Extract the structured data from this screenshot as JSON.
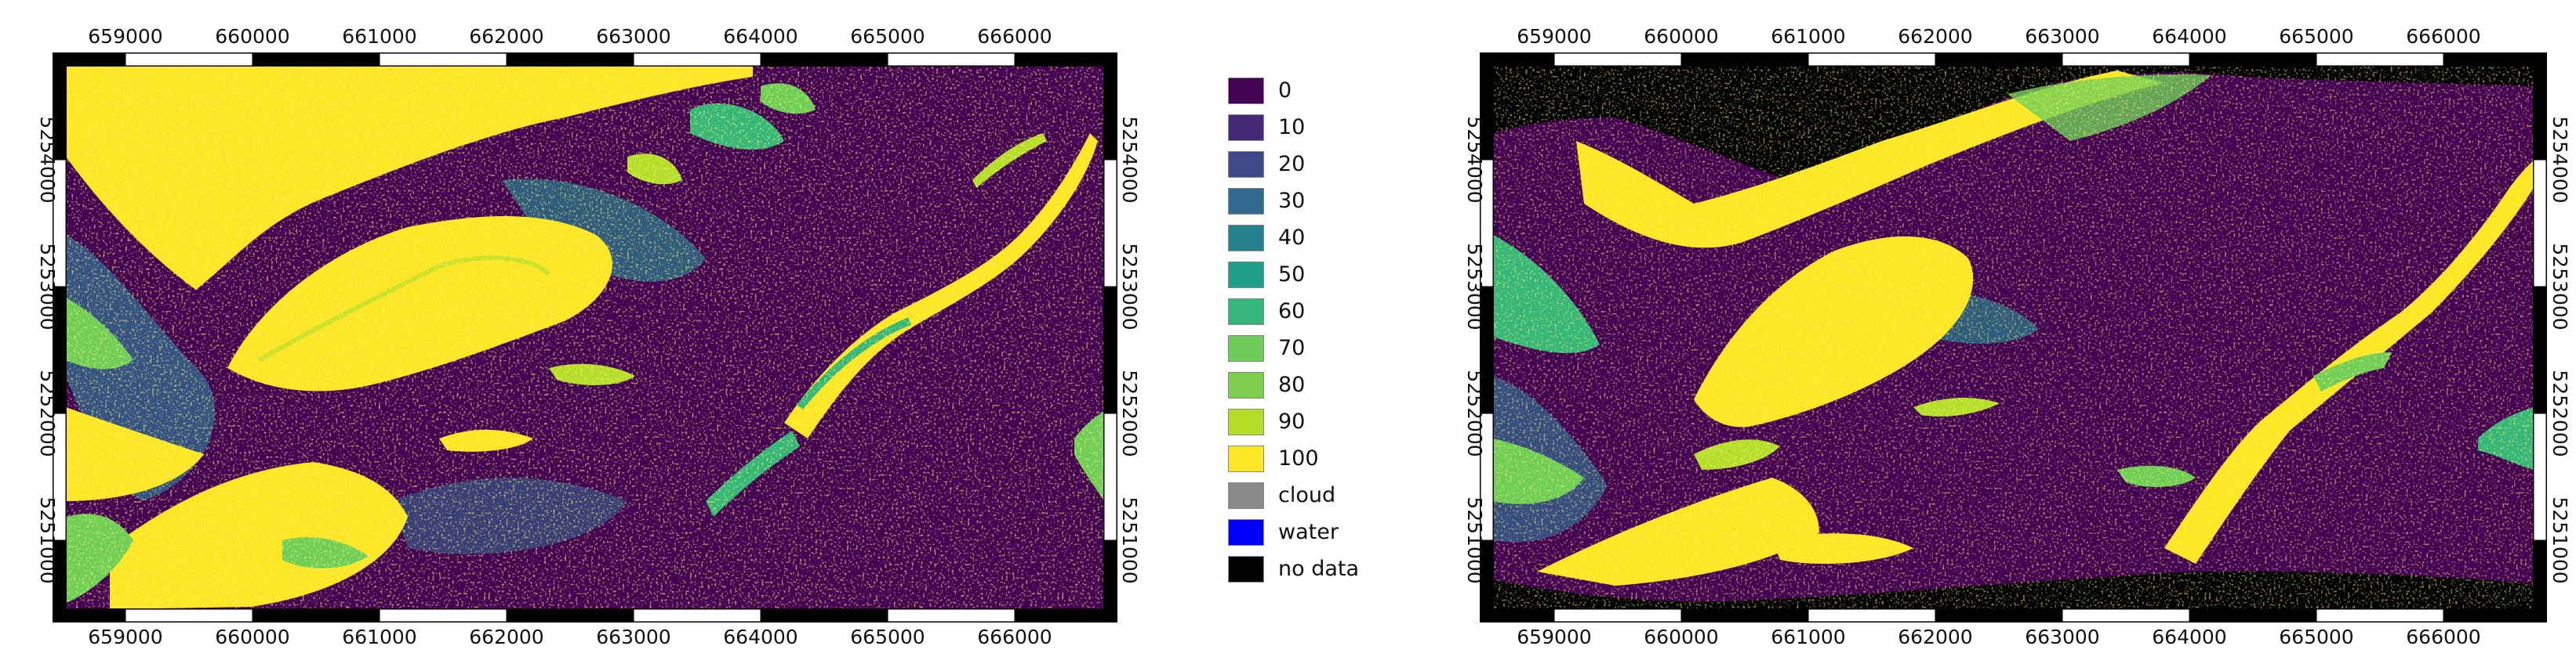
{
  "maps": [
    {
      "id": "left",
      "x_ticks": [
        "659000",
        "660000",
        "661000",
        "662000",
        "663000",
        "664000",
        "665000",
        "666000"
      ],
      "y_ticks": [
        "5254000",
        "5253000",
        "5252000",
        "5251000"
      ]
    },
    {
      "id": "right",
      "x_ticks": [
        "659000",
        "660000",
        "661000",
        "662000",
        "663000",
        "664000",
        "665000",
        "666000"
      ],
      "y_ticks": [
        "5254000",
        "5253000",
        "5252000",
        "5251000"
      ]
    }
  ],
  "legend": {
    "items": [
      {
        "label": "0",
        "color": "#440154"
      },
      {
        "label": "10",
        "color": "#482878"
      },
      {
        "label": "20",
        "color": "#3e4989"
      },
      {
        "label": "30",
        "color": "#31688e"
      },
      {
        "label": "40",
        "color": "#26828e"
      },
      {
        "label": "50",
        "color": "#1f9e89"
      },
      {
        "label": "60",
        "color": "#35b779"
      },
      {
        "label": "70",
        "color": "#6ece58"
      },
      {
        "label": "80",
        "color": "#7fcf4e"
      },
      {
        "label": "90",
        "color": "#b5de2b"
      },
      {
        "label": "100",
        "color": "#fde725"
      },
      {
        "label": "cloud",
        "color": "#8a8a8a"
      },
      {
        "label": "water",
        "color": "#0000ff"
      },
      {
        "label": "no data",
        "color": "#000000"
      }
    ]
  }
}
